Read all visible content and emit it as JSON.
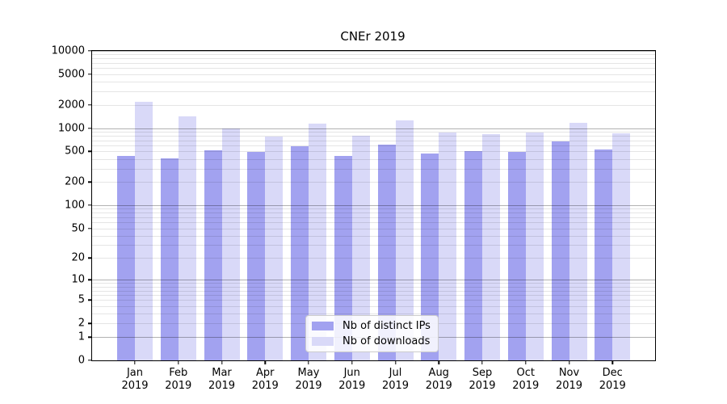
{
  "title": "CNEr 2019",
  "legend": {
    "items": [
      {
        "label": "Nb of distinct IPs",
        "color": "#a2a2f0"
      },
      {
        "label": "Nb of downloads",
        "color": "#d9d9f8"
      }
    ]
  },
  "chart_data": {
    "type": "bar",
    "title": "CNEr 2019",
    "xlabel": "",
    "ylabel": "",
    "yscale": "symlog-log1p",
    "ylim": [
      0,
      10000
    ],
    "grid": true,
    "legend_position": "bottom-center-inside",
    "categories": [
      "Jan",
      "Feb",
      "Mar",
      "Apr",
      "May",
      "Jun",
      "Jul",
      "Aug",
      "Sep",
      "Oct",
      "Nov",
      "Dec"
    ],
    "category_year": "2019",
    "x_tick_labels": [
      "Jan\n2019",
      "Feb\n2019",
      "Mar\n2019",
      "Apr\n2019",
      "May\n2019",
      "Jun\n2019",
      "Jul\n2019",
      "Aug\n2019",
      "Sep\n2019",
      "Oct\n2019",
      "Nov\n2019",
      "Dec\n2019"
    ],
    "y_tick_values": [
      10000,
      5000,
      2000,
      1000,
      500,
      200,
      100,
      50,
      20,
      10,
      5,
      2,
      1,
      0
    ],
    "y_tick_labels": [
      "10000",
      "5000",
      "2000",
      "1000",
      "500",
      "200",
      "100",
      "50",
      "20",
      "10",
      "5",
      "2",
      "1",
      "0"
    ],
    "series": [
      {
        "name": "Nb of distinct IPs",
        "color": "#a2a2f0",
        "values": [
          440,
          410,
          520,
          500,
          590,
          440,
          620,
          470,
          510,
          500,
          675,
          530
        ]
      },
      {
        "name": "Nb of downloads",
        "color": "#d9d9f8",
        "values": [
          2200,
          1420,
          1000,
          780,
          1140,
          805,
          1255,
          875,
          840,
          875,
          1185,
          870
        ]
      }
    ]
  },
  "style": {
    "grid_major_color": "#b0b0b0",
    "grid_minor_color": "#e2e2e2",
    "spine_color": "#000000",
    "background": "#ffffff"
  }
}
